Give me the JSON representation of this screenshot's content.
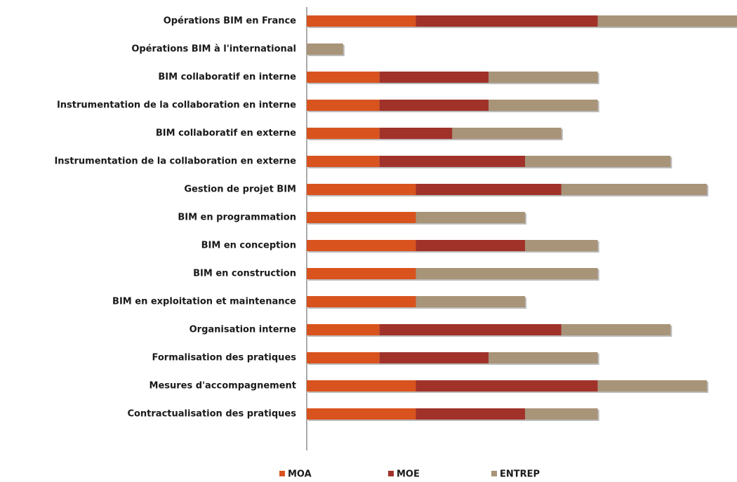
{
  "chart_data": {
    "type": "bar",
    "orientation": "horizontal",
    "stacked": true,
    "categories": [
      "Opérations BIM en France",
      "Opérations BIM à l'international",
      "BIM collaboratif en interne",
      "Instrumentation de la collaboration en interne",
      "BIM collaboratif en externe",
      "Instrumentation de la collaboration en externe",
      "Gestion de projet BIM",
      "BIM en programmation",
      "BIM en conception",
      "BIM en construction",
      "BIM en exploitation et maintenance",
      "Organisation interne",
      "Formalisation des pratiques",
      "Mesures d'accompagnement",
      "Contractualisation des pratiques"
    ],
    "series": [
      {
        "name": "MOA",
        "color": "#d9531e",
        "values": [
          3,
          0,
          2,
          2,
          2,
          2,
          3,
          3,
          3,
          3,
          3,
          2,
          2,
          3,
          3
        ]
      },
      {
        "name": "MOE",
        "color": "#a0322a",
        "values": [
          5,
          0,
          3,
          3,
          2,
          4,
          4,
          0,
          3,
          0,
          0,
          5,
          3,
          5,
          3
        ]
      },
      {
        "name": "ENTREP",
        "color": "#a89478",
        "values": [
          4,
          1,
          3,
          3,
          3,
          4,
          4,
          3,
          2,
          5,
          3,
          3,
          3,
          3,
          2
        ]
      }
    ],
    "xlim": [
      0,
      12
    ],
    "legend": "bottom"
  }
}
